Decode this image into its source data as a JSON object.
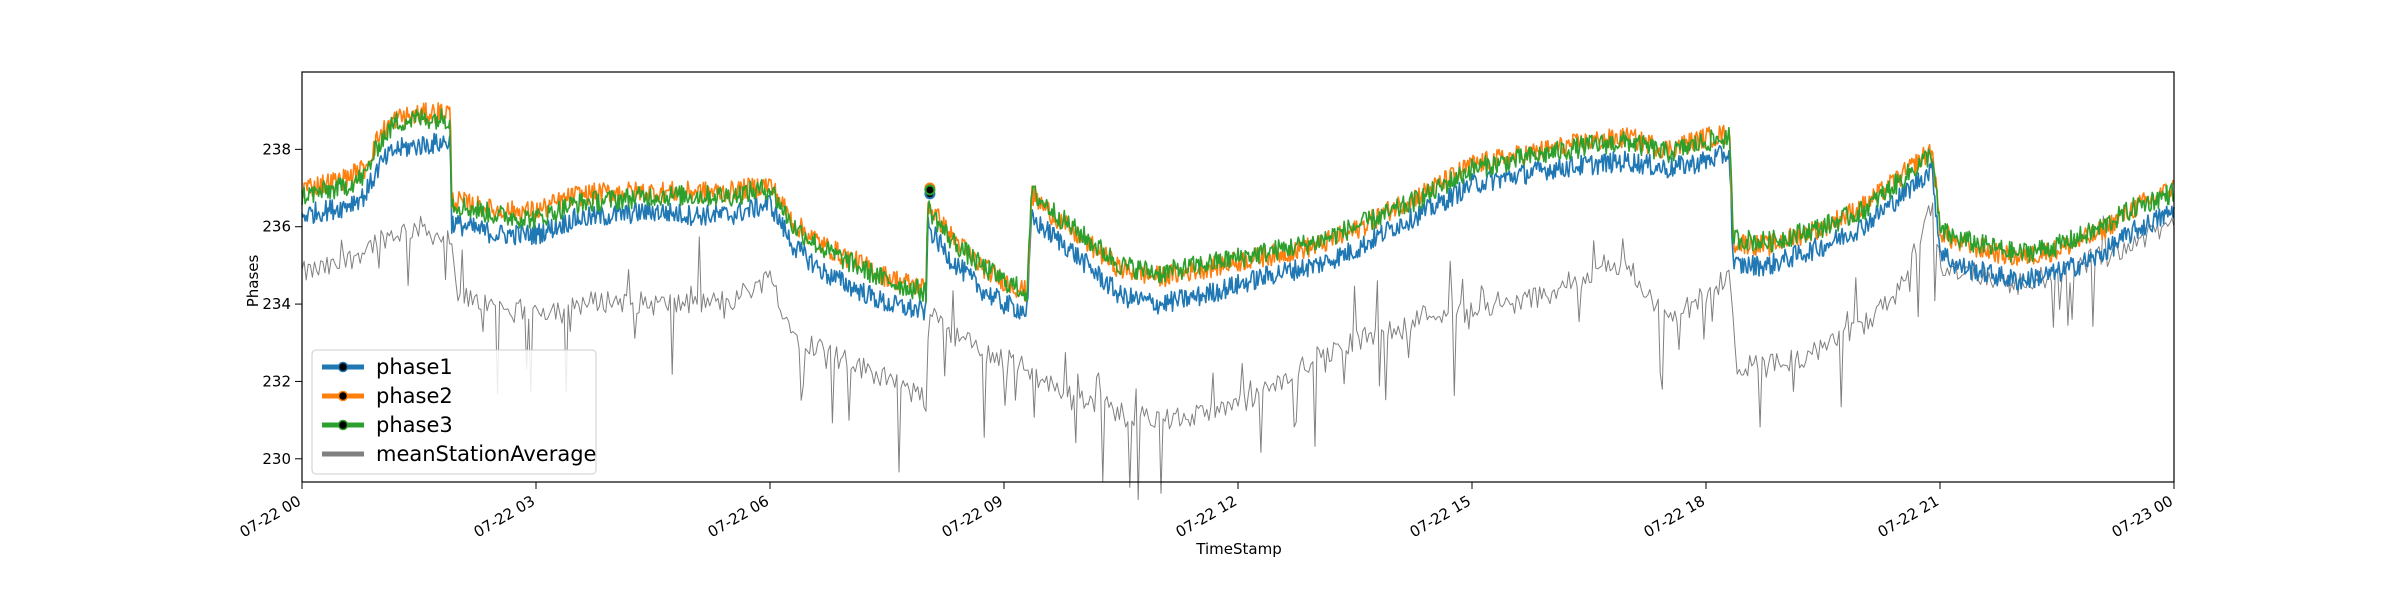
{
  "chart_data": {
    "type": "line",
    "xlabel": "TimeStamp",
    "ylabel": "Phases",
    "xlim": [
      "2020-07-22T00:00",
      "2020-07-23T00:00"
    ],
    "ylim": [
      229.4,
      240.0
    ],
    "x_tick_labels": [
      "07-22 00",
      "07-22 03",
      "07-22 06",
      "07-22 09",
      "07-22 12",
      "07-22 15",
      "07-22 18",
      "07-22 21",
      "07-23 00"
    ],
    "y_ticks": [
      230,
      232,
      234,
      236,
      238
    ],
    "grid": false,
    "legend_position": "lower-left",
    "marker_annotation": {
      "x_hour": 8.05,
      "values": [
        236.85,
        237.0,
        236.95
      ],
      "note": "highlighted sample points for phase1, phase2, phase3"
    },
    "series": [
      {
        "name": "phase1",
        "color": "#1f77b4",
        "marker": "o",
        "x_hours": [
          0,
          0.5,
          0.8,
          1.0,
          1.2,
          1.5,
          1.9,
          1.92,
          2.5,
          3.0,
          3.5,
          4.0,
          4.5,
          5.0,
          5.5,
          6.0,
          6.3,
          6.7,
          7.0,
          7.5,
          8.0,
          8.02,
          8.3,
          8.7,
          9.0,
          9.3,
          9.35,
          9.8,
          10.5,
          11.0,
          11.5,
          12.0,
          12.5,
          13.0,
          13.5,
          14.0,
          14.5,
          15.0,
          15.5,
          16.0,
          16.5,
          17.0,
          17.5,
          18.0,
          18.3,
          18.35,
          18.8,
          19.5,
          20.0,
          20.5,
          20.9,
          21.0,
          21.2,
          22.0,
          22.5,
          23.0,
          23.5,
          24.0
        ],
        "y": [
          236.3,
          236.5,
          236.8,
          237.6,
          238.0,
          238.1,
          238.2,
          236.1,
          235.8,
          235.8,
          236.2,
          236.3,
          236.4,
          236.3,
          236.3,
          236.6,
          235.5,
          234.8,
          234.5,
          234.0,
          233.8,
          236.0,
          235.2,
          234.4,
          234.0,
          233.8,
          236.2,
          235.5,
          234.2,
          234.0,
          234.2,
          234.5,
          234.8,
          235.0,
          235.4,
          236.0,
          236.5,
          237.1,
          237.3,
          237.5,
          237.6,
          237.7,
          237.5,
          237.7,
          237.9,
          235.0,
          235.0,
          235.5,
          236.0,
          236.8,
          237.5,
          235.4,
          235.0,
          234.6,
          234.8,
          235.2,
          235.9,
          236.4
        ]
      },
      {
        "name": "phase2",
        "color": "#ff7f0e",
        "marker": "o",
        "x_hours": [
          0,
          0.5,
          0.8,
          1.0,
          1.2,
          1.5,
          1.9,
          1.92,
          2.5,
          3.0,
          3.5,
          4.0,
          4.5,
          5.0,
          5.5,
          6.0,
          6.3,
          6.7,
          7.0,
          7.5,
          8.0,
          8.02,
          8.3,
          8.7,
          9.0,
          9.3,
          9.35,
          9.8,
          10.5,
          11.0,
          11.5,
          12.0,
          12.5,
          13.0,
          13.5,
          14.0,
          14.5,
          15.0,
          15.5,
          16.0,
          16.5,
          17.0,
          17.5,
          18.0,
          18.3,
          18.35,
          18.8,
          19.5,
          20.0,
          20.5,
          20.9,
          21.0,
          21.2,
          22.0,
          22.5,
          23.0,
          23.5,
          24.0
        ],
        "y": [
          237.0,
          237.2,
          237.5,
          238.4,
          238.8,
          238.9,
          239.0,
          236.7,
          236.4,
          236.4,
          236.8,
          236.9,
          236.9,
          236.9,
          236.9,
          237.1,
          236.1,
          235.5,
          235.2,
          234.7,
          234.4,
          236.6,
          235.8,
          235.0,
          234.6,
          234.3,
          236.8,
          236.0,
          234.9,
          234.7,
          234.9,
          235.1,
          235.3,
          235.5,
          235.9,
          236.5,
          237.0,
          237.6,
          237.8,
          238.0,
          238.2,
          238.3,
          238.0,
          238.3,
          238.4,
          235.6,
          235.5,
          236.0,
          236.5,
          237.3,
          238.0,
          235.9,
          235.6,
          235.2,
          235.4,
          235.8,
          236.5,
          237.0
        ]
      },
      {
        "name": "phase3",
        "color": "#2ca02c",
        "marker": "o",
        "x_hours": [
          0,
          0.5,
          0.8,
          1.0,
          1.2,
          1.5,
          1.9,
          1.92,
          2.5,
          3.0,
          3.5,
          4.0,
          4.5,
          5.0,
          5.5,
          6.0,
          6.3,
          6.7,
          7.0,
          7.5,
          8.0,
          8.02,
          8.3,
          8.7,
          9.0,
          9.3,
          9.35,
          9.8,
          10.5,
          11.0,
          11.5,
          12.0,
          12.5,
          13.0,
          13.5,
          14.0,
          14.5,
          15.0,
          15.5,
          16.0,
          16.5,
          17.0,
          17.5,
          18.0,
          18.3,
          18.35,
          18.8,
          19.5,
          20.0,
          20.5,
          20.9,
          21.0,
          21.2,
          22.0,
          22.5,
          23.0,
          23.5,
          24.0
        ],
        "y": [
          236.8,
          237.0,
          237.3,
          238.2,
          238.7,
          238.8,
          238.8,
          236.6,
          236.3,
          236.2,
          236.6,
          236.7,
          236.8,
          236.8,
          236.8,
          237.0,
          236.0,
          235.4,
          235.1,
          234.6,
          234.3,
          236.5,
          235.7,
          235.0,
          234.6,
          234.3,
          236.9,
          236.1,
          235.0,
          234.8,
          235.0,
          235.2,
          235.4,
          235.6,
          236.0,
          236.4,
          236.9,
          237.5,
          237.7,
          237.9,
          238.1,
          238.2,
          237.9,
          238.2,
          238.3,
          235.7,
          235.6,
          236.0,
          236.4,
          237.2,
          237.9,
          235.9,
          235.7,
          235.3,
          235.5,
          235.9,
          236.5,
          236.9
        ]
      },
      {
        "name": "meanStationAverage",
        "color": "#808080",
        "marker": "",
        "x_hours": [
          0,
          0.5,
          1.0,
          1.5,
          1.9,
          2.0,
          2.5,
          3.0,
          3.5,
          4.0,
          4.5,
          5.0,
          5.5,
          6.0,
          6.3,
          6.7,
          7.0,
          7.5,
          8.0,
          8.05,
          8.3,
          8.7,
          9.0,
          9.3,
          9.5,
          10.0,
          10.5,
          11.0,
          11.5,
          12.0,
          12.5,
          13.0,
          13.5,
          14.0,
          14.5,
          15.0,
          15.5,
          16.0,
          16.5,
          17.0,
          17.5,
          18.0,
          18.3,
          18.4,
          18.8,
          19.5,
          20.0,
          20.5,
          20.9,
          21.0,
          21.5,
          22.0,
          22.5,
          23.0,
          23.5,
          24.0
        ],
        "y": [
          234.8,
          235.0,
          235.7,
          236.0,
          235.6,
          234.2,
          233.9,
          233.8,
          234.0,
          234.1,
          234.0,
          234.0,
          234.1,
          234.7,
          233.2,
          232.8,
          232.5,
          232.1,
          231.5,
          234.0,
          233.3,
          232.8,
          232.6,
          232.3,
          232.0,
          231.6,
          231.2,
          231.0,
          231.1,
          231.4,
          231.9,
          232.6,
          233.0,
          233.4,
          233.8,
          233.8,
          234.0,
          234.3,
          234.8,
          235.0,
          233.6,
          234.2,
          234.6,
          232.4,
          232.4,
          232.8,
          233.4,
          234.4,
          236.5,
          235.0,
          234.8,
          234.5,
          234.8,
          235.2,
          235.6,
          236.1
        ]
      }
    ]
  }
}
